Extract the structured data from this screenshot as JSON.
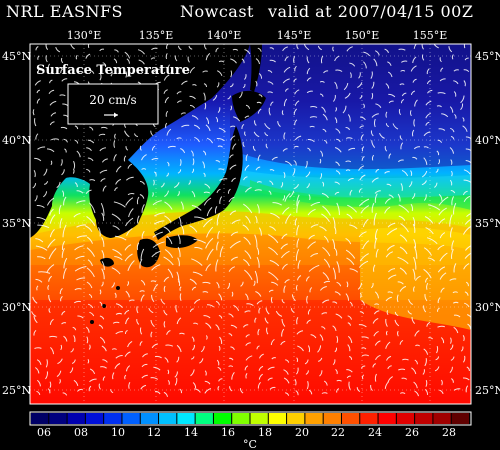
{
  "header": {
    "source": "NRL EASNFS",
    "product": "Nowcast",
    "valid": "valid at 2007/04/15 00Z"
  },
  "map": {
    "variable_label": "Surface Temperature",
    "vector_scale_label": "20 cm/s",
    "longitude_labels": [
      "130°E",
      "135°E",
      "140°E",
      "145°E",
      "150°E",
      "155°E"
    ],
    "latitude_labels": [
      "45°N",
      "40°N",
      "35°N",
      "30°N",
      "25°N"
    ]
  },
  "colorbar": {
    "tick_labels": [
      "06",
      "08",
      "10",
      "12",
      "14",
      "16",
      "18",
      "20",
      "22",
      "24",
      "26",
      "28"
    ],
    "unit": "°C",
    "colors": [
      "#000066",
      "#00007f",
      "#0000b0",
      "#0010d8",
      "#0030f0",
      "#0060ff",
      "#0090ff",
      "#00c0ff",
      "#00e8ff",
      "#00ff80",
      "#00ff00",
      "#80ff00",
      "#c0ff00",
      "#ffff00",
      "#ffd000",
      "#ffa000",
      "#ff8000",
      "#ff5000",
      "#ff2000",
      "#ff0000",
      "#e00000",
      "#c00000",
      "#a00000",
      "#600000"
    ]
  }
}
